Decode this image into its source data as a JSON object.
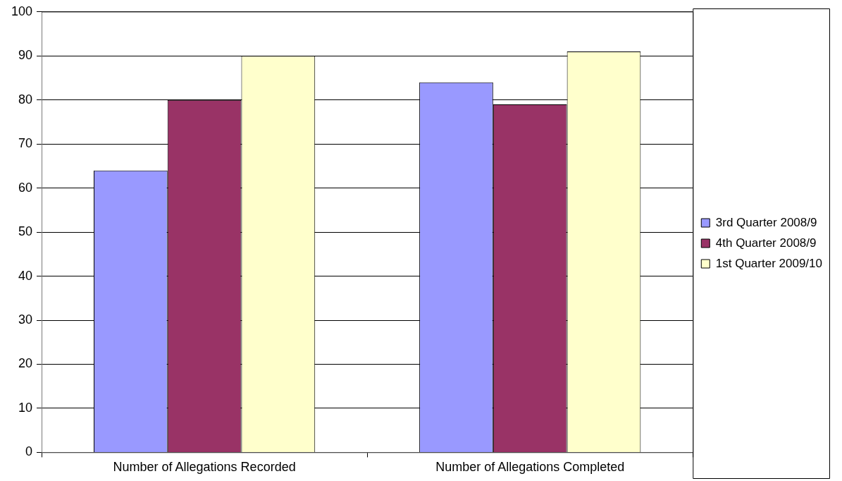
{
  "chart_data": {
    "type": "bar",
    "categories": [
      "Number of Allegations Recorded",
      "Number of Allegations Completed"
    ],
    "series": [
      {
        "name": "3rd Quarter 2008/9",
        "color": "#9999ff",
        "values": [
          64,
          84
        ]
      },
      {
        "name": "4th Quarter 2008/9",
        "color": "#993366",
        "values": [
          80,
          79
        ]
      },
      {
        "name": "1st Quarter 2009/10",
        "color": "#ffffcc",
        "values": [
          90,
          91
        ]
      }
    ],
    "ylim": [
      0,
      100
    ],
    "yticks": [
      0,
      10,
      20,
      30,
      40,
      50,
      60,
      70,
      80,
      90,
      100
    ],
    "grid": "y",
    "legend": "right"
  }
}
